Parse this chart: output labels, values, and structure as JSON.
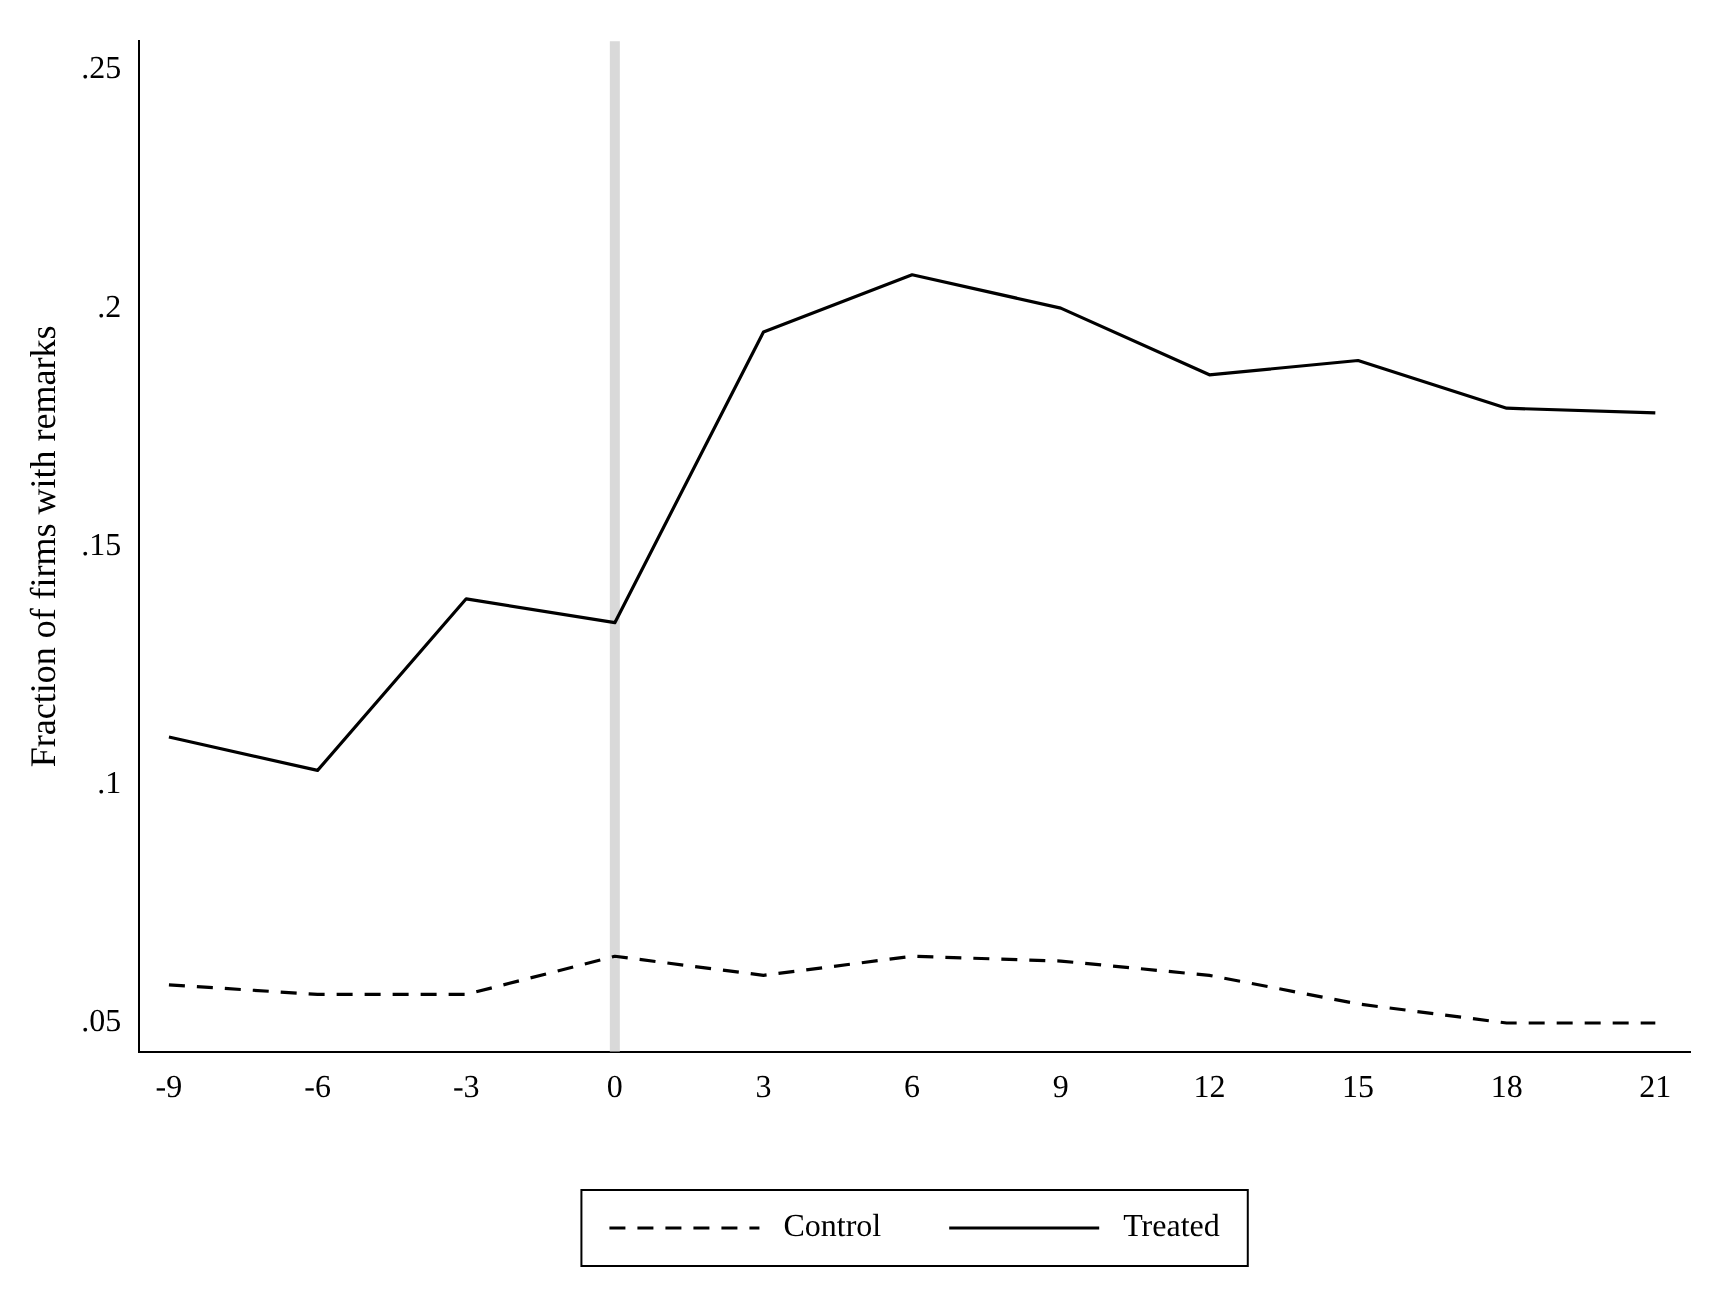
{
  "chart_data": {
    "type": "line",
    "ylabel": "Fraction of firms with remarks",
    "x": [
      -9,
      -6,
      -3,
      0,
      3,
      6,
      9,
      12,
      15,
      18,
      21
    ],
    "series": [
      {
        "name": "Control",
        "color": "#000000",
        "line_style": "dashed",
        "values": [
          0.058,
          0.056,
          0.056,
          0.064,
          0.06,
          0.064,
          0.063,
          0.06,
          0.054,
          0.05,
          0.05
        ]
      },
      {
        "name": "Treated",
        "color": "#000000",
        "line_style": "solid",
        "values": [
          0.11,
          0.103,
          0.139,
          0.134,
          0.195,
          0.207,
          0.2,
          0.186,
          0.189,
          0.179,
          0.178
        ]
      }
    ],
    "xlim": [
      -9.6,
      21.7
    ],
    "xticks": [
      -9,
      -6,
      -3,
      0,
      3,
      6,
      9,
      12,
      15,
      18,
      21
    ],
    "ylim": [
      0.044,
      0.256
    ],
    "yticks": [
      {
        "value": 0.05,
        "label": ".05"
      },
      {
        "value": 0.1,
        "label": ".1"
      },
      {
        "value": 0.15,
        "label": ".15"
      },
      {
        "value": 0.2,
        "label": ".2"
      },
      {
        "value": 0.25,
        "label": ".25"
      }
    ],
    "ref_lines": [
      {
        "axis": "x",
        "value": 0,
        "color": "#d9d9d9"
      }
    ],
    "grid": false,
    "legend": "bottom",
    "marker": "none"
  }
}
